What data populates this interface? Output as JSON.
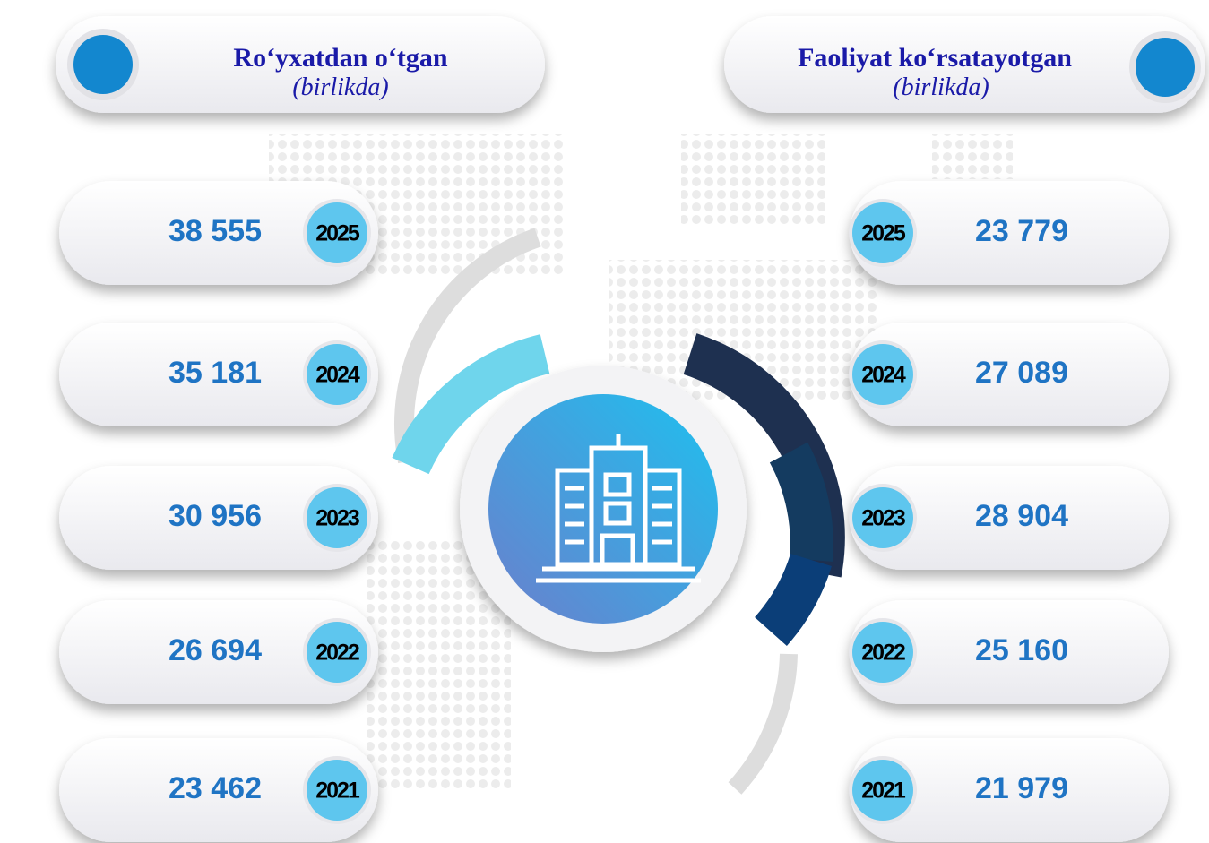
{
  "left": {
    "title": "Ro‘yxatdan o‘tgan",
    "subtitle": "(birlikda)",
    "rows": [
      {
        "year": "2025",
        "value": "38 555"
      },
      {
        "year": "2024",
        "value": "35 181"
      },
      {
        "year": "2023",
        "value": "30 956"
      },
      {
        "year": "2022",
        "value": "26 694"
      },
      {
        "year": "2021",
        "value": "23 462"
      }
    ]
  },
  "right": {
    "title": "Faoliyat ko‘rsatayotgan",
    "subtitle": "(birlikda)",
    "rows": [
      {
        "year": "2025",
        "value": "23 779"
      },
      {
        "year": "2024",
        "value": "27 089"
      },
      {
        "year": "2023",
        "value": "28 904"
      },
      {
        "year": "2022",
        "value": "25 160"
      },
      {
        "year": "2021",
        "value": "21 979"
      }
    ]
  }
}
